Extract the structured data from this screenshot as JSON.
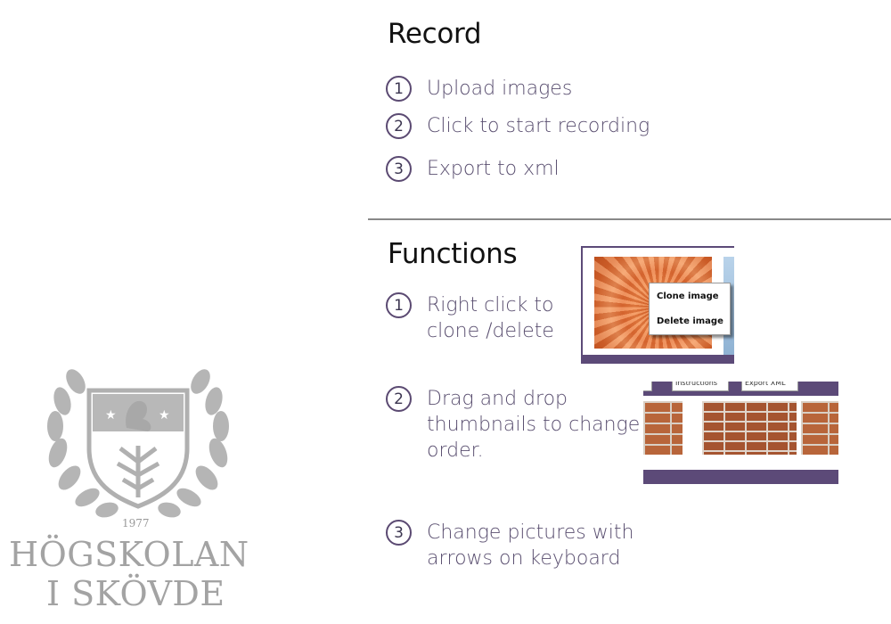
{
  "record": {
    "heading": "Record",
    "steps": [
      {
        "num": "1",
        "text": "Upload images"
      },
      {
        "num": "2",
        "text": "Click to start recording"
      },
      {
        "num": "3",
        "text": "Export to xml"
      }
    ]
  },
  "functions": {
    "heading": "Functions",
    "steps": [
      {
        "num": "1",
        "text": "Right click to\nclone /delete"
      },
      {
        "num": "2",
        "text": "Drag and drop\nthumbnails to change\norder."
      },
      {
        "num": "3",
        "text": "Change pictures with\narrows on keyboard"
      }
    ],
    "context_menu": {
      "clone": "Clone image",
      "delete": "Delete image"
    },
    "toolbar_buttons": {
      "instructions": "Instructions",
      "export": "Export XML"
    }
  },
  "logo": {
    "year": "1977",
    "line1": "HÖGSKOLAN",
    "line2": "I SKÖVDE"
  },
  "colors": {
    "accent": "#5c4a78",
    "step_text": "#5a4f70",
    "logo_gray": "#a3a3a3"
  },
  "icons": [
    "numbered-circle-icon",
    "laurel-wreath-icon",
    "shield-crest-icon"
  ]
}
